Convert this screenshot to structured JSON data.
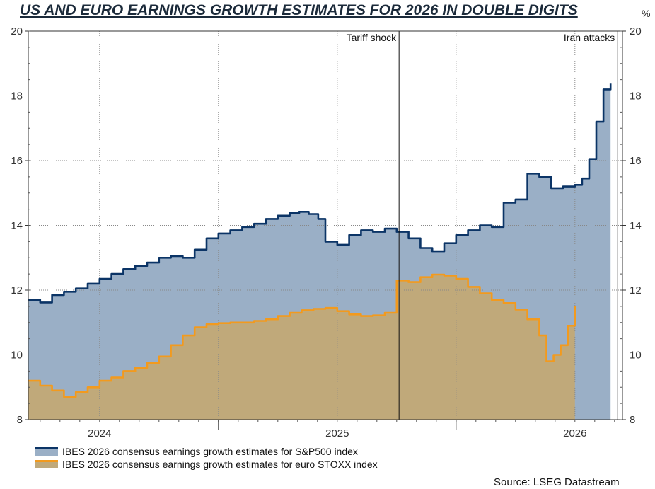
{
  "chart_data": {
    "type": "area",
    "title": "US AND EURO EARNINGS GROWTH ESTIMATES FOR 2026 IN DOUBLE DIGITS",
    "unit": "%",
    "ylim": [
      8,
      20
    ],
    "yticks": [
      8,
      10,
      12,
      14,
      16,
      18,
      20
    ],
    "xlim": [
      2023.7,
      2026.2
    ],
    "xticks": [
      {
        "label": "2024",
        "x": 2024.0
      },
      {
        "label": "2025",
        "x": 2025.0
      },
      {
        "label": "2026",
        "x": 2026.0
      }
    ],
    "year_boundaries": [
      2024.5,
      2025.5
    ],
    "annotations": [
      {
        "label": "Tariff shock",
        "x": 2025.26
      },
      {
        "label": "Iran attacks",
        "x": 2026.18
      }
    ],
    "series": [
      {
        "name": "IBES 2026 consensus earnings growth estimates for S&P500 index",
        "color": "#0b3466",
        "fill": "#9aafc6",
        "points": [
          [
            2023.7,
            11.7
          ],
          [
            2023.75,
            11.62
          ],
          [
            2023.8,
            11.85
          ],
          [
            2023.85,
            11.95
          ],
          [
            2023.9,
            12.05
          ],
          [
            2023.95,
            12.2
          ],
          [
            2024.0,
            12.35
          ],
          [
            2024.05,
            12.5
          ],
          [
            2024.1,
            12.65
          ],
          [
            2024.15,
            12.75
          ],
          [
            2024.2,
            12.85
          ],
          [
            2024.25,
            13.0
          ],
          [
            2024.3,
            13.05
          ],
          [
            2024.35,
            13.0
          ],
          [
            2024.4,
            13.25
          ],
          [
            2024.45,
            13.6
          ],
          [
            2024.5,
            13.75
          ],
          [
            2024.55,
            13.85
          ],
          [
            2024.6,
            13.95
          ],
          [
            2024.65,
            14.05
          ],
          [
            2024.7,
            14.2
          ],
          [
            2024.75,
            14.3
          ],
          [
            2024.8,
            14.38
          ],
          [
            2024.84,
            14.42
          ],
          [
            2024.88,
            14.35
          ],
          [
            2024.92,
            14.2
          ],
          [
            2024.95,
            13.5
          ],
          [
            2025.0,
            13.4
          ],
          [
            2025.05,
            13.7
          ],
          [
            2025.1,
            13.85
          ],
          [
            2025.15,
            13.8
          ],
          [
            2025.2,
            13.9
          ],
          [
            2025.25,
            13.8
          ],
          [
            2025.3,
            13.6
          ],
          [
            2025.35,
            13.3
          ],
          [
            2025.4,
            13.2
          ],
          [
            2025.45,
            13.45
          ],
          [
            2025.5,
            13.7
          ],
          [
            2025.55,
            13.85
          ],
          [
            2025.6,
            14.0
          ],
          [
            2025.65,
            13.95
          ],
          [
            2025.7,
            14.7
          ],
          [
            2025.75,
            14.8
          ],
          [
            2025.8,
            15.6
          ],
          [
            2025.85,
            15.5
          ],
          [
            2025.9,
            15.15
          ],
          [
            2025.95,
            15.2
          ],
          [
            2026.0,
            15.25
          ],
          [
            2026.03,
            15.45
          ],
          [
            2026.06,
            16.05
          ],
          [
            2026.09,
            17.2
          ],
          [
            2026.12,
            18.2
          ],
          [
            2026.15,
            18.4
          ]
        ]
      },
      {
        "name": "IBES 2026 consensus earnings growth estimates for euro STOXX index",
        "color": "#f29a1e",
        "fill": "#c0a97a",
        "points": [
          [
            2023.7,
            9.2
          ],
          [
            2023.75,
            9.05
          ],
          [
            2023.8,
            8.9
          ],
          [
            2023.85,
            8.7
          ],
          [
            2023.9,
            8.85
          ],
          [
            2023.95,
            9.0
          ],
          [
            2024.0,
            9.2
          ],
          [
            2024.05,
            9.3
          ],
          [
            2024.1,
            9.5
          ],
          [
            2024.15,
            9.6
          ],
          [
            2024.2,
            9.75
          ],
          [
            2024.25,
            9.95
          ],
          [
            2024.3,
            10.3
          ],
          [
            2024.35,
            10.6
          ],
          [
            2024.4,
            10.85
          ],
          [
            2024.45,
            10.95
          ],
          [
            2024.5,
            10.98
          ],
          [
            2024.55,
            11.0
          ],
          [
            2024.6,
            11.0
          ],
          [
            2024.65,
            11.05
          ],
          [
            2024.7,
            11.1
          ],
          [
            2024.75,
            11.2
          ],
          [
            2024.8,
            11.3
          ],
          [
            2024.85,
            11.38
          ],
          [
            2024.9,
            11.42
          ],
          [
            2024.95,
            11.45
          ],
          [
            2025.0,
            11.35
          ],
          [
            2025.05,
            11.25
          ],
          [
            2025.1,
            11.2
          ],
          [
            2025.15,
            11.22
          ],
          [
            2025.2,
            11.3
          ],
          [
            2025.25,
            12.3
          ],
          [
            2025.3,
            12.25
          ],
          [
            2025.35,
            12.4
          ],
          [
            2025.4,
            12.48
          ],
          [
            2025.45,
            12.45
          ],
          [
            2025.5,
            12.35
          ],
          [
            2025.55,
            12.1
          ],
          [
            2025.6,
            11.9
          ],
          [
            2025.65,
            11.7
          ],
          [
            2025.7,
            11.6
          ],
          [
            2025.75,
            11.4
          ],
          [
            2025.8,
            11.1
          ],
          [
            2025.85,
            10.6
          ],
          [
            2025.88,
            9.8
          ],
          [
            2025.91,
            10.0
          ],
          [
            2025.94,
            10.3
          ],
          [
            2025.97,
            10.9
          ],
          [
            2026.0,
            11.5
          ]
        ]
      }
    ]
  },
  "source": "Source: LSEG Datastream"
}
